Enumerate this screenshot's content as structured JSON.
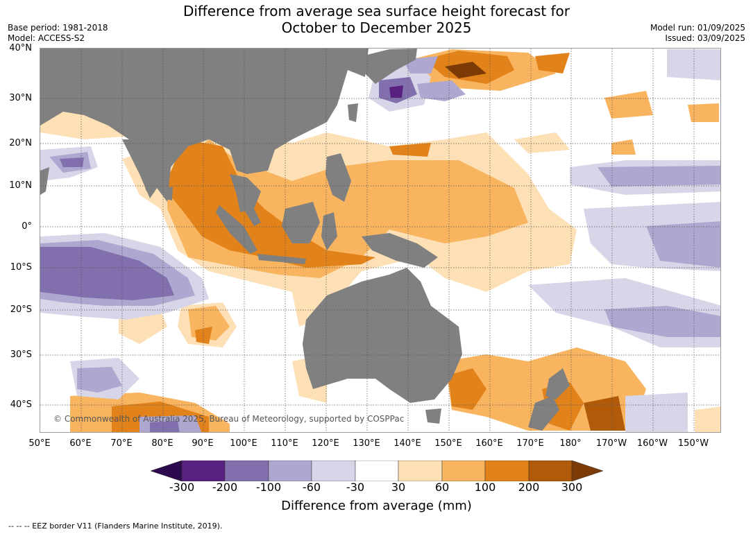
{
  "title_line1": "Difference from average sea surface height forecast for",
  "title_line2": "October to December 2025",
  "base_period": "Base period: 1981-2018",
  "model": "Model: ACCESS-S2",
  "model_run": "Model run: 01/09/2025",
  "issued": "Issued: 03/09/2025",
  "lat_labels": [
    "40°N",
    "30°N",
    "20°N",
    "10°N",
    "0°",
    "10°S",
    "20°S",
    "30°S",
    "40°S"
  ],
  "lon_labels": [
    "50°E",
    "60°E",
    "70°E",
    "80°E",
    "90°E",
    "100°E",
    "110°E",
    "120°E",
    "130°E",
    "140°E",
    "150°E",
    "160°E",
    "170°E",
    "180°",
    "170°W",
    "160°W",
    "150°W"
  ],
  "credit": "© Commonwealth of Australia 2025, Bureau of Meteorology, supported by COSPPac",
  "colorbar": {
    "label": "Difference from average (mm)",
    "ticks": [
      "-300",
      "-200",
      "-100",
      "-60",
      "-30",
      "30",
      "60",
      "100",
      "200",
      "300"
    ],
    "colors": [
      "#2d0a4e",
      "#58217f",
      "#8170ad",
      "#aea7cf",
      "#d6d6e8",
      "#ffffff",
      "#fde0b5",
      "#f8b45e",
      "#e1821a",
      "#b05a0a",
      "#7b3a06"
    ]
  },
  "footer": "-- -- -- EEZ border V11 (Flanders Marine Institute, 2019).",
  "colors": {
    "land": "#808080",
    "grid": "#555555"
  }
}
